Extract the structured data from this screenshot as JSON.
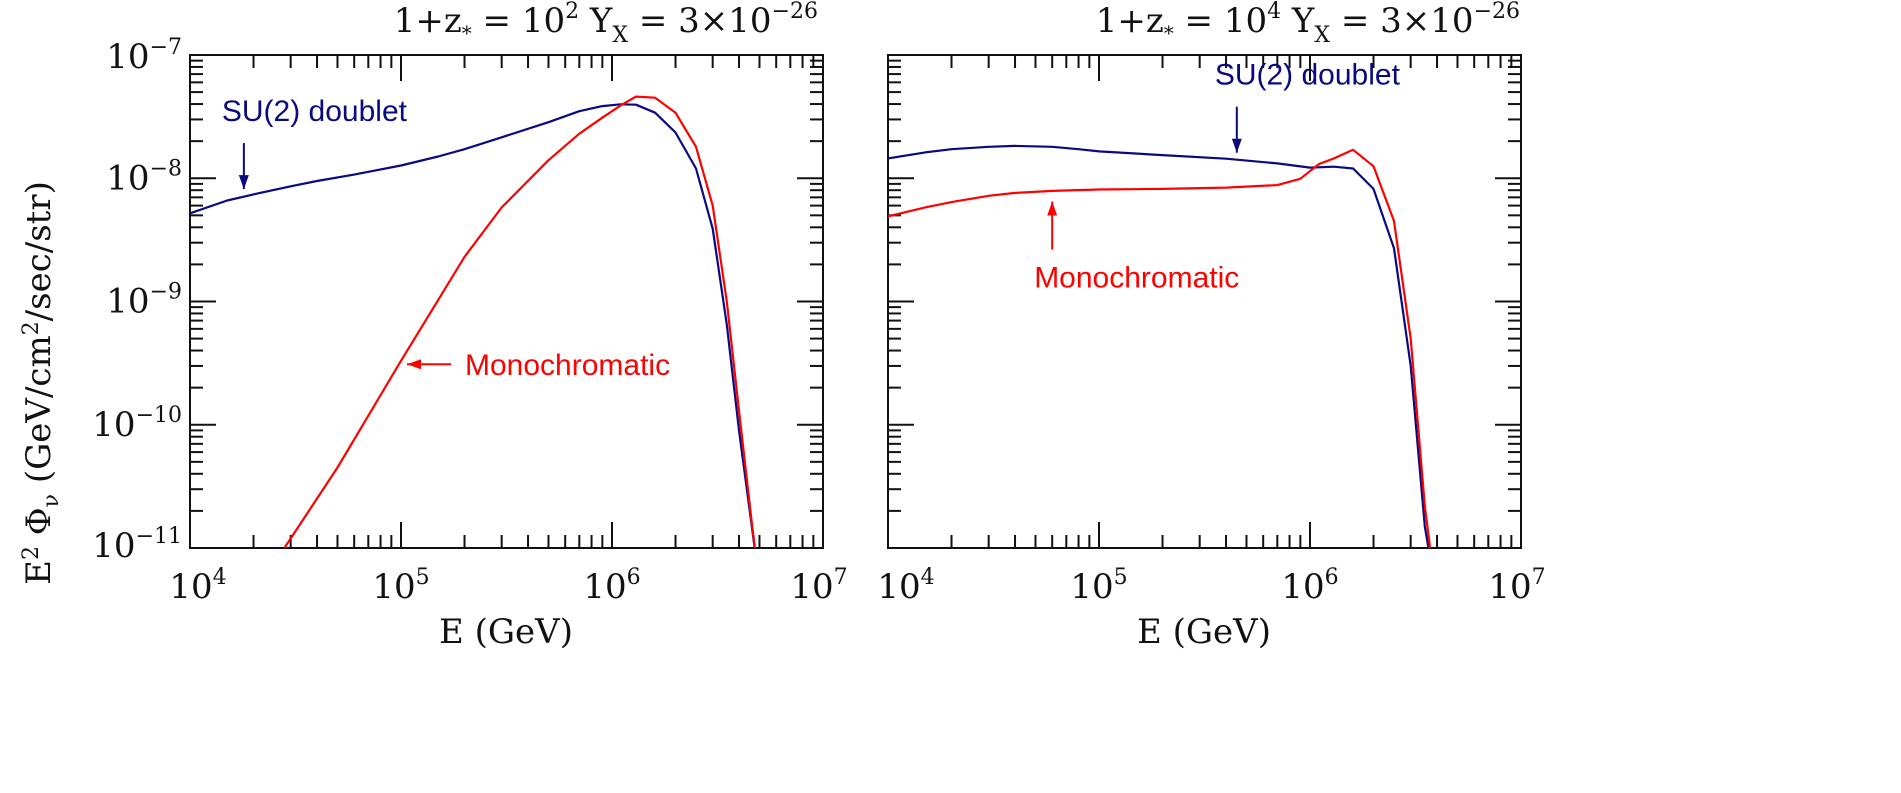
{
  "figure": {
    "ylabel_main": "E",
    "ylabel_sup": "2",
    "ylabel_phi": " Φ",
    "ylabel_sub": "ν",
    "ylabel_rest": " (GeV/cm",
    "ylabel_sup2": "2",
    "ylabel_tail": "/sec/str)"
  },
  "chart_data": [
    {
      "type": "line",
      "title_parts": {
        "a": "1+z",
        "star": "*",
        "b": " = 10",
        "exp": "2",
        "c": "   Y",
        "sub": "X",
        "d": "  =  3×10",
        "exp2": "−26"
      },
      "xlabel": "E (GeV)",
      "ylabel": "E² Φν (GeV/cm²/sec/str)",
      "xscale": "log",
      "yscale": "log",
      "xlim": [
        10000,
        10000000
      ],
      "ylim": [
        1e-11,
        1e-07
      ],
      "x_ticks": [
        {
          "base": "10",
          "exp": "4"
        },
        {
          "base": "10",
          "exp": "5"
        },
        {
          "base": "10",
          "exp": "6"
        },
        {
          "base": "10",
          "exp": "7"
        }
      ],
      "y_ticks": [
        {
          "base": "10",
          "exp": "−11"
        },
        {
          "base": "10",
          "exp": "−10"
        },
        {
          "base": "10",
          "exp": "−9"
        },
        {
          "base": "10",
          "exp": "−8"
        },
        {
          "base": "10",
          "exp": "−7"
        }
      ],
      "series": [
        {
          "name": "SU(2) doublet",
          "color": "#0a0a80",
          "points": [
            [
              10000,
              5.2e-09
            ],
            [
              15000,
              6.6e-09
            ],
            [
              20000,
              7.4e-09
            ],
            [
              30000,
              8.6e-09
            ],
            [
              40000,
              9.5e-09
            ],
            [
              60000,
              1.07e-08
            ],
            [
              80000,
              1.18e-08
            ],
            [
              100000,
              1.27e-08
            ],
            [
              150000,
              1.5e-08
            ],
            [
              200000,
              1.72e-08
            ],
            [
              300000,
              2.15e-08
            ],
            [
              500000,
              2.85e-08
            ],
            [
              700000,
              3.5e-08
            ],
            [
              900000,
              3.85e-08
            ],
            [
              1100000,
              3.98e-08
            ],
            [
              1300000,
              3.95e-08
            ],
            [
              1600000,
              3.4e-08
            ],
            [
              2000000,
              2.35e-08
            ],
            [
              2500000,
              1.2e-08
            ],
            [
              3000000,
              3.9e-09
            ],
            [
              3500000,
              6.5e-10
            ],
            [
              4000000,
              9e-11
            ],
            [
              4600000,
              1.5e-11
            ],
            [
              5000000,
              5e-12
            ]
          ]
        },
        {
          "name": "Monochromatic",
          "color": "#ff0000",
          "points": [
            [
              28000,
              1e-11
            ],
            [
              50000,
              4.5e-11
            ],
            [
              100000,
              3.3e-10
            ],
            [
              200000,
              2.3e-09
            ],
            [
              300000,
              5.8e-09
            ],
            [
              500000,
              1.4e-08
            ],
            [
              700000,
              2.3e-08
            ],
            [
              900000,
              3.1e-08
            ],
            [
              1100000,
              3.9e-08
            ],
            [
              1300000,
              4.6e-08
            ],
            [
              1600000,
              4.5e-08
            ],
            [
              2000000,
              3.4e-08
            ],
            [
              2500000,
              1.8e-08
            ],
            [
              3000000,
              6e-09
            ],
            [
              3500000,
              1e-09
            ],
            [
              4000000,
              1.3e-10
            ],
            [
              4600000,
              1.6e-11
            ],
            [
              5000000,
              5e-12
            ]
          ]
        }
      ],
      "annotations": [
        {
          "text": "SU(2) doublet",
          "color": "#0a0a80",
          "arrow": "down",
          "at": [
            18000,
            7.3e-09
          ]
        },
        {
          "text": "Monochromatic",
          "color": "#ff0000",
          "arrow": "left",
          "at": [
            100000,
            3.1e-10
          ]
        }
      ]
    },
    {
      "type": "line",
      "title_parts": {
        "a": "1+z",
        "star": "*",
        "b": " = 10",
        "exp": "4",
        "c": "   Y",
        "sub": "X",
        "d": "  =  3×10",
        "exp2": "−26"
      },
      "xlabel": "E (GeV)",
      "xscale": "log",
      "yscale": "log",
      "xlim": [
        10000,
        10000000
      ],
      "ylim": [
        1e-11,
        1e-07
      ],
      "x_ticks": [
        {
          "base": "10",
          "exp": "4"
        },
        {
          "base": "10",
          "exp": "5"
        },
        {
          "base": "10",
          "exp": "6"
        },
        {
          "base": "10",
          "exp": "7"
        }
      ],
      "series": [
        {
          "name": "SU(2) doublet",
          "color": "#0a0a80",
          "points": [
            [
              10000,
              1.45e-08
            ],
            [
              15000,
              1.62e-08
            ],
            [
              20000,
              1.72e-08
            ],
            [
              30000,
              1.8e-08
            ],
            [
              40000,
              1.83e-08
            ],
            [
              60000,
              1.8e-08
            ],
            [
              80000,
              1.72e-08
            ],
            [
              100000,
              1.65e-08
            ],
            [
              200000,
              1.54e-08
            ],
            [
              400000,
              1.44e-08
            ],
            [
              700000,
              1.32e-08
            ],
            [
              1000000,
              1.22e-08
            ],
            [
              1300000,
              1.24e-08
            ],
            [
              1600000,
              1.2e-08
            ],
            [
              2000000,
              8.2e-09
            ],
            [
              2500000,
              2.7e-09
            ],
            [
              3000000,
              3e-10
            ],
            [
              3500000,
              1.5e-11
            ],
            [
              3900000,
              5e-12
            ]
          ]
        },
        {
          "name": "Monochromatic",
          "color": "#ff0000",
          "points": [
            [
              10000,
              4.9e-09
            ],
            [
              15000,
              5.8e-09
            ],
            [
              20000,
              6.4e-09
            ],
            [
              30000,
              7.2e-09
            ],
            [
              40000,
              7.6e-09
            ],
            [
              60000,
              7.9e-09
            ],
            [
              100000,
              8.1e-09
            ],
            [
              200000,
              8.2e-09
            ],
            [
              400000,
              8.4e-09
            ],
            [
              700000,
              8.8e-09
            ],
            [
              900000,
              9.9e-09
            ],
            [
              1100000,
              1.3e-08
            ],
            [
              1300000,
              1.45e-08
            ],
            [
              1600000,
              1.7e-08
            ],
            [
              2000000,
              1.25e-08
            ],
            [
              2500000,
              4.5e-09
            ],
            [
              3000000,
              5e-10
            ],
            [
              3500000,
              2.2e-11
            ],
            [
              3900000,
              5e-12
            ]
          ]
        }
      ],
      "annotations": [
        {
          "text": "SU(2) doublet",
          "color": "#0a0a80",
          "arrow": "down",
          "at": [
            450000,
            1.44e-08
          ]
        },
        {
          "text": "Monochromatic",
          "color": "#ff0000",
          "arrow": "up",
          "at": [
            60000,
            7.8e-09
          ]
        }
      ]
    }
  ]
}
